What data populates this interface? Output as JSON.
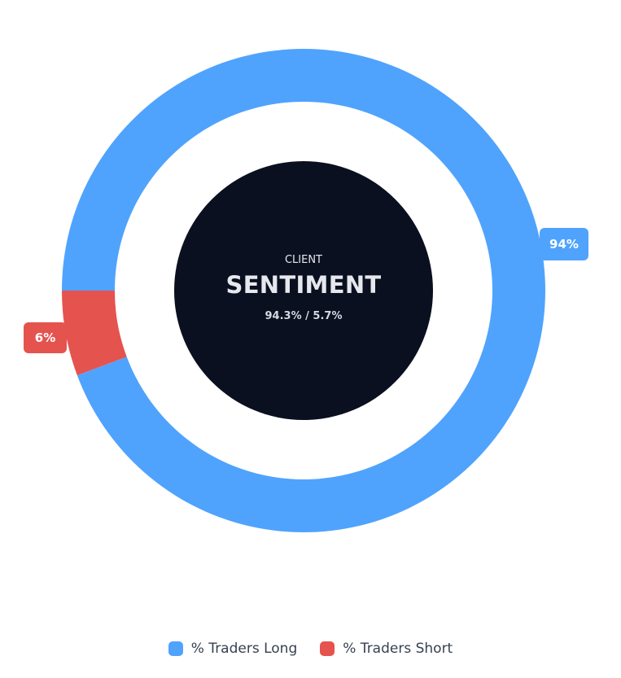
{
  "chart_data": {
    "type": "pie",
    "variant": "donut",
    "series": [
      {
        "name": "% Traders Long",
        "value": 94.3,
        "label": "94%",
        "color": "#4fa3fd"
      },
      {
        "name": "% Traders Short",
        "value": 5.7,
        "label": "6%",
        "color": "#e5534f"
      }
    ],
    "start_angle_deg": 270,
    "legend_position": "bottom"
  },
  "center": {
    "top": "CLIENT",
    "title": "SENTIMENT",
    "subtitle": "94.3% / 5.7%",
    "bg_color": "#0b1020"
  }
}
